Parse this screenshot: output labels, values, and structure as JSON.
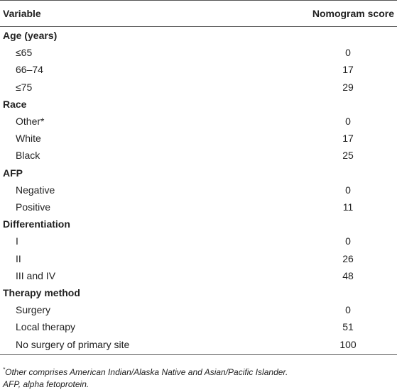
{
  "table": {
    "header": [
      "Variable",
      "Nomogram score"
    ],
    "groups": [
      {
        "label": "Age (years)",
        "rows": [
          [
            "≤65",
            0
          ],
          [
            "66–74",
            17
          ],
          [
            "≤75",
            29
          ]
        ]
      },
      {
        "label": "Race",
        "rows": [
          [
            "Other*",
            0
          ],
          [
            "White",
            17
          ],
          [
            "Black",
            25
          ]
        ]
      },
      {
        "label": "AFP",
        "rows": [
          [
            "Negative",
            0
          ],
          [
            "Positive",
            11
          ]
        ]
      },
      {
        "label": "Differentiation",
        "rows": [
          [
            "I",
            0
          ],
          [
            "II",
            26
          ],
          [
            "III and IV",
            48
          ]
        ]
      },
      {
        "label": "Therapy method",
        "rows": [
          [
            "Surgery",
            0
          ],
          [
            "Local therapy",
            51
          ],
          [
            "No surgery of primary site",
            100
          ]
        ]
      }
    ]
  },
  "footnotes": [
    {
      "marker": "*",
      "text": "Other comprises American Indian/Alaska Native and Asian/Pacific Islander."
    },
    {
      "text": "AFP, alpha fetoprotein."
    }
  ]
}
